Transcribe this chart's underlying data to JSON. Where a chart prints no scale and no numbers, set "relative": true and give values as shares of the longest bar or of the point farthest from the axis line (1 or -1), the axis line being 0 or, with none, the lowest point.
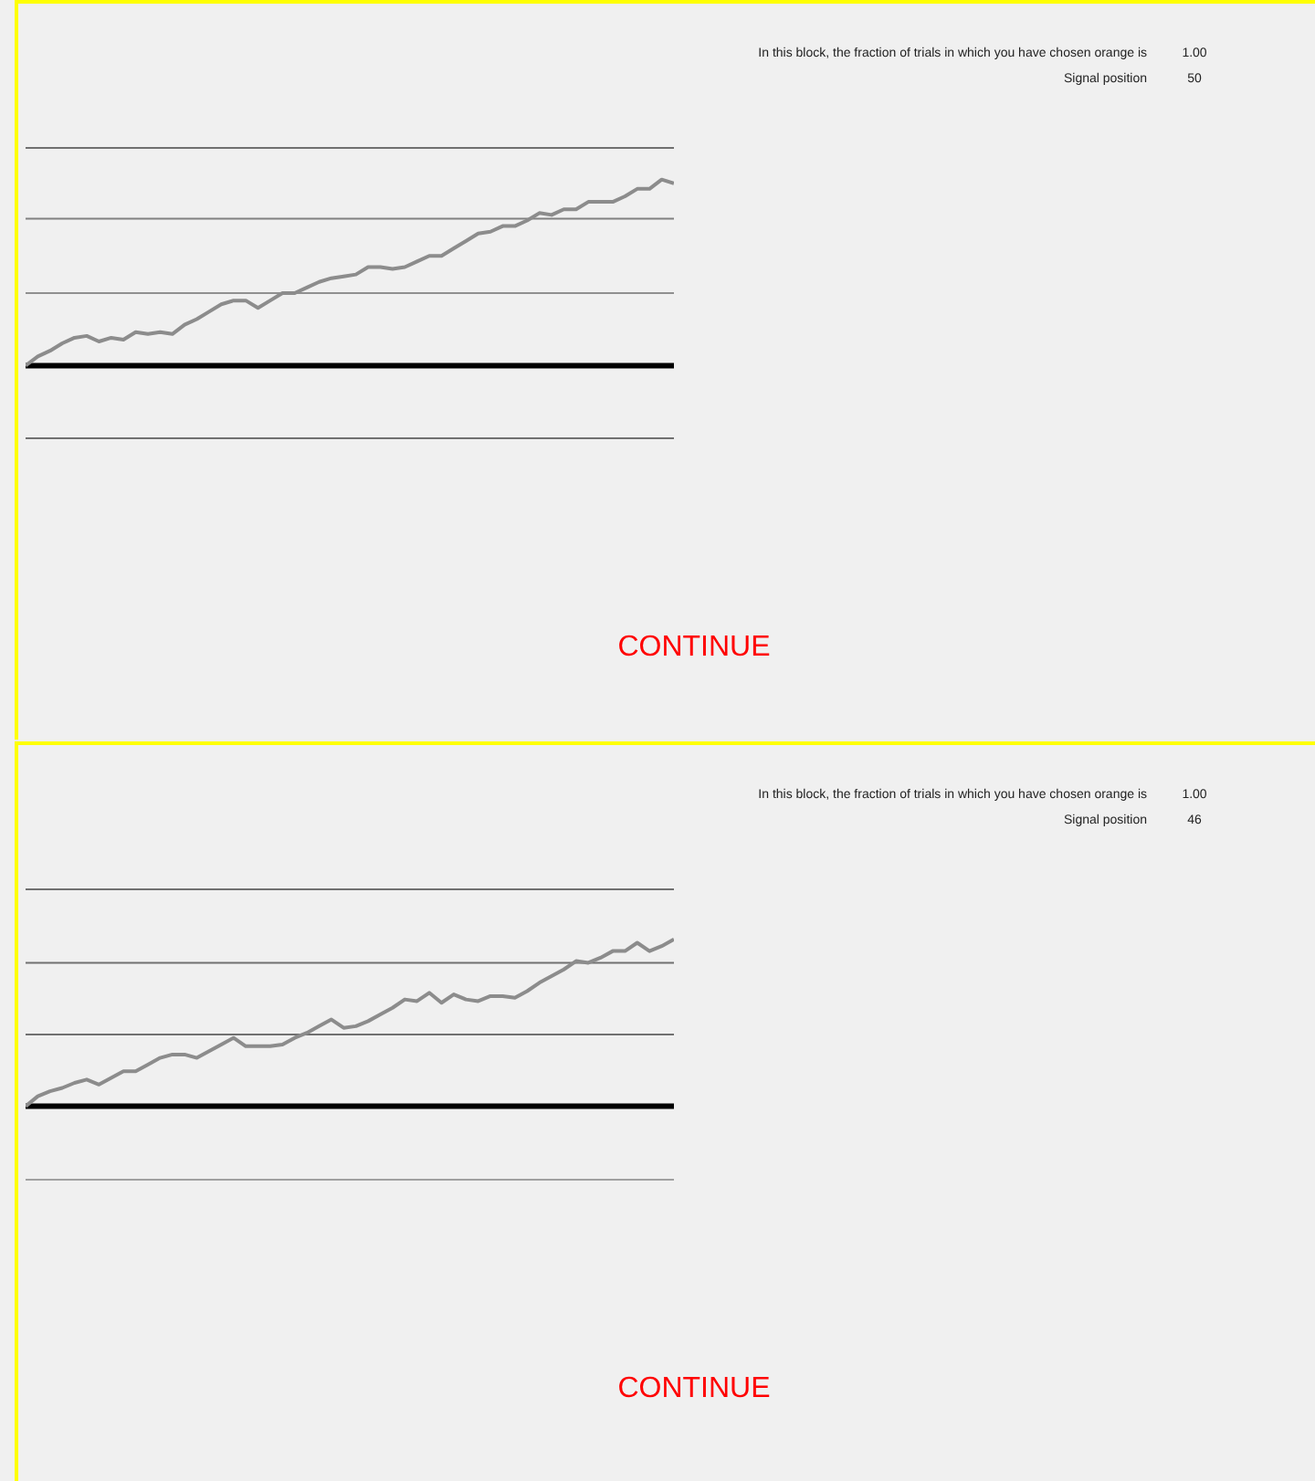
{
  "chart_data": [
    {
      "type": "line",
      "relative": true,
      "categories": [
        null,
        null,
        null,
        null,
        null,
        null,
        null,
        null,
        null,
        null,
        null,
        null,
        null,
        null,
        null,
        null,
        null,
        null,
        null,
        null,
        null,
        null,
        null,
        null,
        null,
        null,
        null,
        null,
        null,
        null,
        null,
        null,
        null,
        null,
        null,
        null,
        null,
        null,
        null,
        null,
        null,
        null,
        null,
        null,
        null,
        null,
        null,
        null,
        null,
        null,
        null,
        null,
        null,
        null
      ],
      "series": [
        {
          "color": "#8c8c8c",
          "values": [
            0,
            0.05,
            0.08,
            0.12,
            0.15,
            0.16,
            0.13,
            0.15,
            0.14,
            0.18,
            0.17,
            0.18,
            0.17,
            0.22,
            0.25,
            0.29,
            0.33,
            0.35,
            0.35,
            0.31,
            0.35,
            0.39,
            0.39,
            0.42,
            0.45,
            0.47,
            0.48,
            0.49,
            0.53,
            0.53,
            0.52,
            0.53,
            0.56,
            0.59,
            0.59,
            0.63,
            0.67,
            0.71,
            0.72,
            0.75,
            0.75,
            0.78,
            0.82,
            0.81,
            0.84,
            0.84,
            0.88,
            0.88,
            0.88,
            0.91,
            0.95,
            0.95,
            1.0,
            0.98
          ]
        }
      ],
      "ref_lines": [
        {
          "axis": "y",
          "value": 1.17,
          "color": "#707070"
        },
        {
          "axis": "y",
          "value": 0.79,
          "color": "#808080"
        },
        {
          "axis": "y",
          "value": 0.39,
          "color": "#909090"
        },
        {
          "axis": "y",
          "value": -0.39,
          "color": "#707070"
        }
      ],
      "marker": "none",
      "line_style": "solid",
      "legend": false,
      "grid": false,
      "annotations": [
        "In this block, the fraction of trials in which you have chosen orange is",
        "1.00",
        "Signal position",
        "50",
        "CONTINUE"
      ]
    },
    {
      "type": "line",
      "relative": true,
      "categories": [
        null,
        null,
        null,
        null,
        null,
        null,
        null,
        null,
        null,
        null,
        null,
        null,
        null,
        null,
        null,
        null,
        null,
        null,
        null,
        null,
        null,
        null,
        null,
        null,
        null,
        null,
        null,
        null,
        null,
        null,
        null,
        null,
        null,
        null,
        null,
        null,
        null,
        null,
        null,
        null,
        null,
        null,
        null,
        null,
        null,
        null,
        null,
        null,
        null,
        null,
        null,
        null,
        null,
        null
      ],
      "series": [
        {
          "color": "#8c8c8c",
          "values": [
            0,
            0.06,
            0.09,
            0.11,
            0.14,
            0.16,
            0.13,
            0.17,
            0.21,
            0.21,
            0.25,
            0.29,
            0.31,
            0.31,
            0.29,
            0.33,
            0.37,
            0.41,
            0.36,
            0.36,
            0.36,
            0.37,
            0.41,
            0.44,
            0.48,
            0.52,
            0.47,
            0.48,
            0.51,
            0.55,
            0.59,
            0.64,
            0.63,
            0.68,
            0.62,
            0.67,
            0.64,
            0.63,
            0.66,
            0.66,
            0.65,
            0.69,
            0.74,
            0.78,
            0.82,
            0.87,
            0.86,
            0.89,
            0.93,
            0.93,
            0.98,
            0.93,
            0.96,
            1.0
          ]
        }
      ],
      "ref_lines": [
        {
          "axis": "y",
          "value": 1.3,
          "color": "#707070"
        },
        {
          "axis": "y",
          "value": 0.86,
          "color": "#707070"
        },
        {
          "axis": "y",
          "value": 0.43,
          "color": "#707070"
        },
        {
          "axis": "y",
          "value": -0.44,
          "color": "#a0a0a0"
        }
      ],
      "marker": "none",
      "line_style": "solid",
      "legend": false,
      "grid": false,
      "annotations": [
        "In this block, the fraction of trials in which you have chosen orange is",
        "1.00",
        "Signal position",
        "46",
        "CONTINUE"
      ]
    }
  ]
}
